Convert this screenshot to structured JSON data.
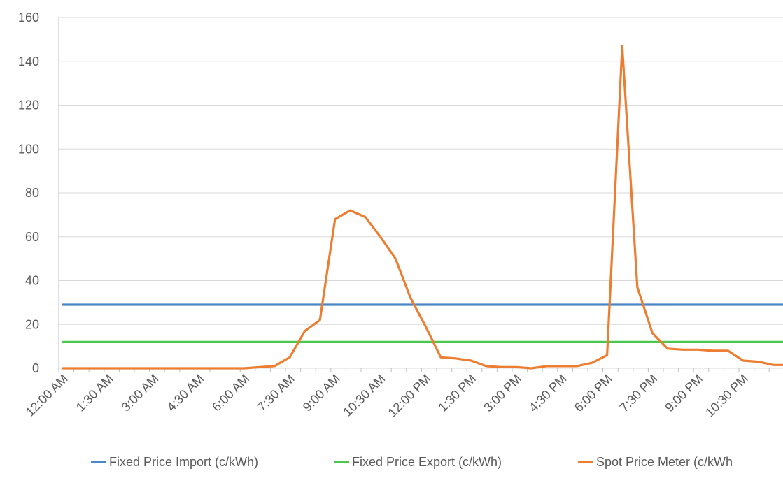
{
  "chart_data": {
    "type": "line",
    "title": "",
    "xlabel": "",
    "ylabel": "",
    "ylim": [
      0,
      160
    ],
    "yticks": [
      0,
      20,
      40,
      60,
      80,
      100,
      120,
      140,
      160
    ],
    "grid": "horizontal",
    "legend_position": "bottom",
    "x_tick_labels": [
      "12:00 AM",
      "1:30 AM",
      "3:00 AM",
      "4:30 AM",
      "6:00 AM",
      "7:30 AM",
      "9:00 AM",
      "10:30 AM",
      "12:00 PM",
      "1:30 PM",
      "3:00 PM",
      "4:30 PM",
      "6:00 PM",
      "7:30 PM",
      "9:00 PM",
      "10:30 PM"
    ],
    "x_times": [
      "12:00 AM",
      "12:30 AM",
      "1:00 AM",
      "1:30 AM",
      "2:00 AM",
      "2:30 AM",
      "3:00 AM",
      "3:30 AM",
      "4:00 AM",
      "4:30 AM",
      "5:00 AM",
      "5:30 AM",
      "6:00 AM",
      "6:30 AM",
      "7:00 AM",
      "7:30 AM",
      "8:00 AM",
      "8:30 AM",
      "9:00 AM",
      "9:30 AM",
      "10:00 AM",
      "10:30 AM",
      "11:00 AM",
      "11:30 AM",
      "12:00 PM",
      "12:30 PM",
      "1:00 PM",
      "1:30 PM",
      "2:00 PM",
      "2:30 PM",
      "3:00 PM",
      "3:30 PM",
      "4:00 PM",
      "4:30 PM",
      "5:00 PM",
      "5:30 PM",
      "6:00 PM",
      "6:30 PM",
      "7:00 PM",
      "7:30 PM",
      "8:00 PM",
      "8:30 PM",
      "9:00 PM",
      "9:30 PM",
      "10:00 PM",
      "10:30 PM",
      "11:00 PM",
      "11:30 PM"
    ],
    "series": [
      {
        "name": "Fixed Price Import (c/kWh)",
        "color": "#4a87c5",
        "values": [
          29,
          29,
          29,
          29,
          29,
          29,
          29,
          29,
          29,
          29,
          29,
          29,
          29,
          29,
          29,
          29,
          29,
          29,
          29,
          29,
          29,
          29,
          29,
          29,
          29,
          29,
          29,
          29,
          29,
          29,
          29,
          29,
          29,
          29,
          29,
          29,
          29,
          29,
          29,
          29,
          29,
          29,
          29,
          29,
          29,
          29,
          29,
          29
        ]
      },
      {
        "name": "Fixed Price Export (c/kWh)",
        "color": "#4cc74c",
        "values": [
          12,
          12,
          12,
          12,
          12,
          12,
          12,
          12,
          12,
          12,
          12,
          12,
          12,
          12,
          12,
          12,
          12,
          12,
          12,
          12,
          12,
          12,
          12,
          12,
          12,
          12,
          12,
          12,
          12,
          12,
          12,
          12,
          12,
          12,
          12,
          12,
          12,
          12,
          12,
          12,
          12,
          12,
          12,
          12,
          12,
          12,
          12,
          12
        ]
      },
      {
        "name": "Spot Price Meter (c/kWh",
        "color": "#ed7d31",
        "values": [
          0,
          0,
          0,
          0,
          0,
          0,
          0,
          0,
          0,
          0,
          0,
          0,
          0,
          0.5,
          1,
          5,
          17,
          22,
          68,
          72,
          69,
          60,
          50,
          32,
          19,
          5,
          4.5,
          3.5,
          1,
          0.5,
          0.5,
          0,
          1,
          1,
          1,
          2.5,
          6,
          147,
          37,
          16,
          9,
          8.5,
          8.5,
          8,
          8,
          3.5,
          3,
          1.5
        ]
      }
    ]
  }
}
